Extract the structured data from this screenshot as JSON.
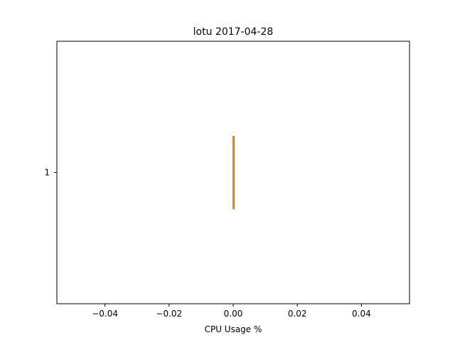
{
  "chart_data": {
    "type": "boxplot",
    "orientation": "horizontal",
    "title": "lotu 2017-04-28",
    "xlabel": "CPU Usage %",
    "ylabel": "",
    "xlim": [
      -0.055,
      0.055
    ],
    "ylim": [
      0.5,
      1.5
    ],
    "xticks": [
      -0.04,
      -0.02,
      0.0,
      0.02,
      0.04
    ],
    "xtick_labels": [
      "−0.04",
      "−0.02",
      "0.00",
      "0.02",
      "0.04"
    ],
    "yticks": [
      1
    ],
    "ytick_labels": [
      "1"
    ],
    "boxes": [
      {
        "position": 1,
        "min": 0.0,
        "q1": 0.0,
        "median": 0.0,
        "q3": 0.0,
        "max": 0.0
      }
    ],
    "grid": false,
    "colors": {
      "box": "#000000",
      "median": "#ff7f0e",
      "axes": "#000000"
    }
  }
}
